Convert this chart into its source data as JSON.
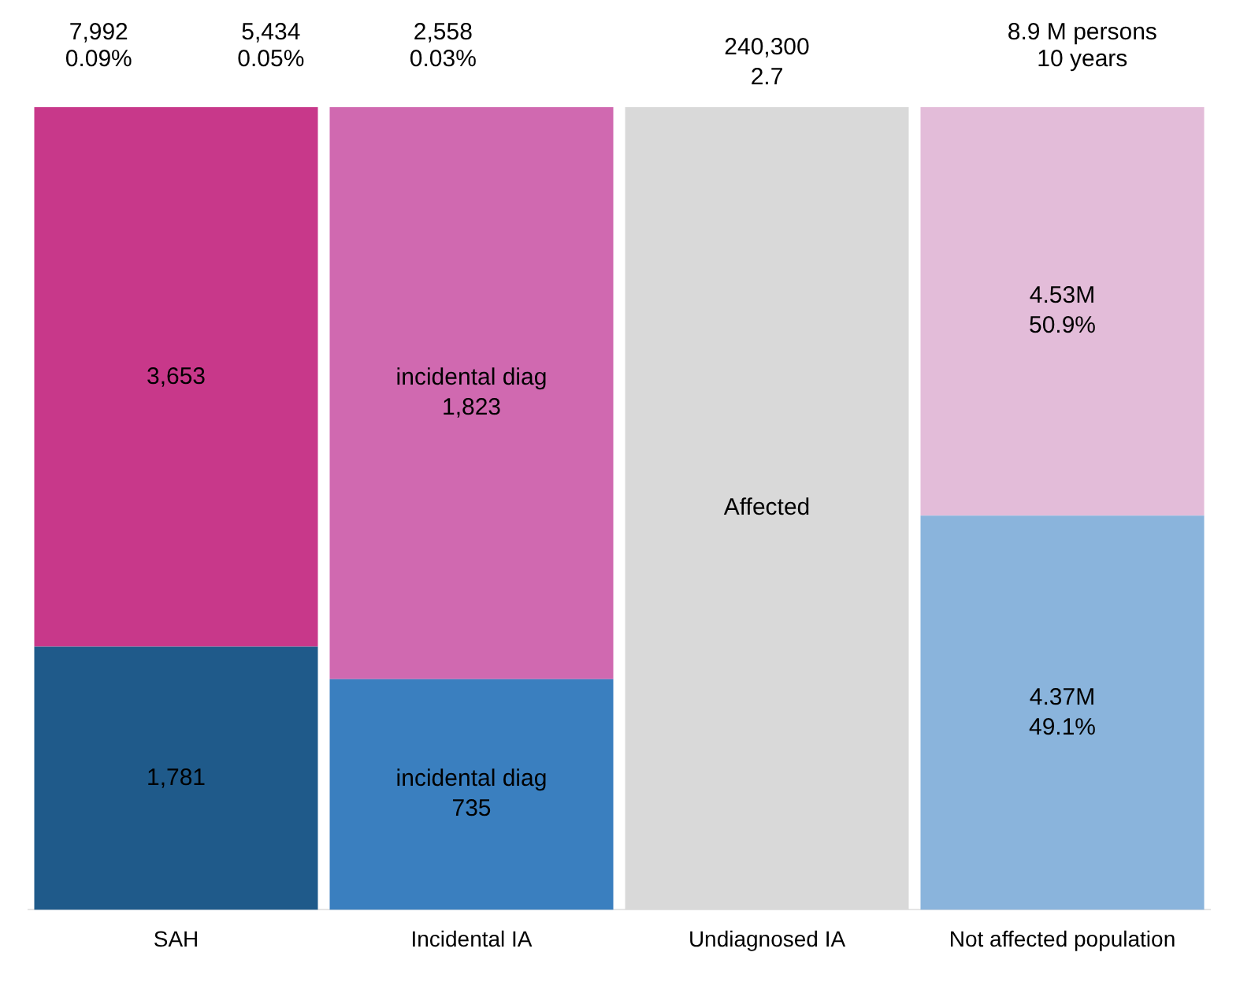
{
  "chart_data": {
    "type": "other",
    "legend": false,
    "categories": [
      "SAH",
      "Incidental IA",
      "Undiagnosed IA",
      "Not affected population"
    ],
    "series": [
      {
        "colors": [
          "#1f5a8a",
          "#3a7fbf",
          null,
          "#8ab4dc"
        ],
        "values": [
          1781,
          735,
          null,
          4370000
        ],
        "value_labels": [
          "1,781",
          "incidental diag\n735",
          null,
          "4.37M\n49.1%"
        ]
      },
      {
        "colors": [
          "#c8388a",
          "#d069b0",
          null,
          "#e3bcd9"
        ],
        "values": [
          3653,
          1823,
          null,
          4530000
        ],
        "value_labels": [
          "3,653",
          "incidental diag\n1,823",
          null,
          "4.53M\n50.9%"
        ]
      },
      {
        "color": "#d9d9d9",
        "values": [
          null,
          null,
          240300,
          null
        ],
        "value_labels": [
          null,
          null,
          "240,300\n2.7",
          null
        ]
      }
    ],
    "annotations": [
      "7,992\n0.09%",
      "5,434\n0.05%",
      "2,558\n0.03%",
      {
        "text": "Affected",
        "x": "Undiagnosed IA"
      },
      "8.9 M persons\n10 years"
    ]
  }
}
